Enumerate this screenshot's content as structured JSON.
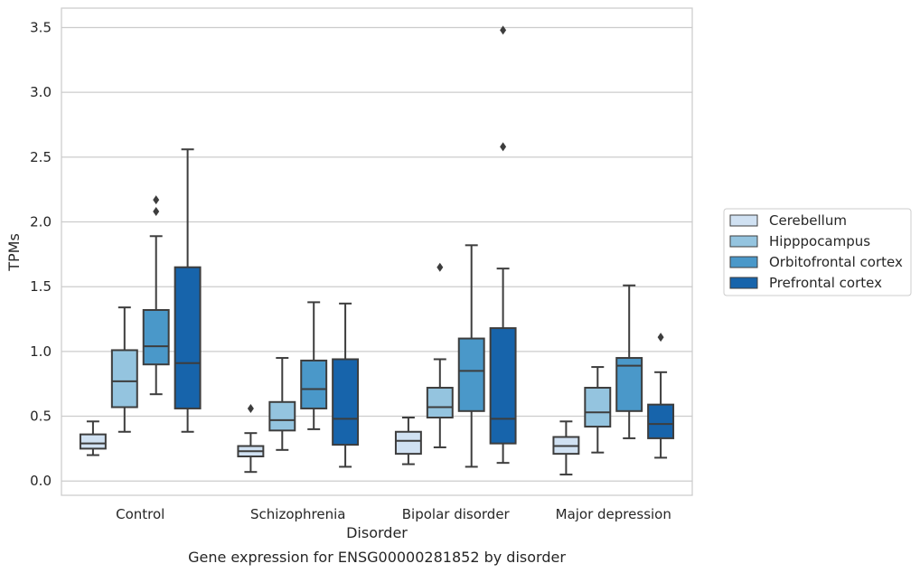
{
  "chart_data": {
    "type": "box",
    "caption": "Gene expression for ENSG00000281852 by disorder",
    "xlabel": "Disorder",
    "ylabel": "TPMs",
    "ylim": [
      -0.11,
      3.65
    ],
    "yticks": [
      0.0,
      0.5,
      1.0,
      1.5,
      2.0,
      2.5,
      3.0,
      3.5
    ],
    "ytick_labels": [
      "0.0",
      "0.5",
      "1.0",
      "1.5",
      "2.0",
      "2.5",
      "3.0",
      "3.5"
    ],
    "grid": "horizontal",
    "legend_position": "right",
    "categories": [
      "Control",
      "Schizophrenia",
      "Bipolar disorder",
      "Major depression"
    ],
    "series": [
      {
        "name": "Cerebellum",
        "color": "#d0e1f2",
        "boxes": [
          {
            "whislo": 0.2,
            "q1": 0.25,
            "med": 0.29,
            "q3": 0.36,
            "whishi": 0.46,
            "fliers": []
          },
          {
            "whislo": 0.07,
            "q1": 0.19,
            "med": 0.23,
            "q3": 0.27,
            "whishi": 0.37,
            "fliers": [
              0.56
            ]
          },
          {
            "whislo": 0.13,
            "q1": 0.21,
            "med": 0.31,
            "q3": 0.38,
            "whishi": 0.49,
            "fliers": []
          },
          {
            "whislo": 0.05,
            "q1": 0.21,
            "med": 0.27,
            "q3": 0.34,
            "whishi": 0.46,
            "fliers": []
          }
        ]
      },
      {
        "name": "Hipppocampus",
        "color": "#94c4df",
        "boxes": [
          {
            "whislo": 0.38,
            "q1": 0.57,
            "med": 0.77,
            "q3": 1.01,
            "whishi": 1.34,
            "fliers": []
          },
          {
            "whislo": 0.24,
            "q1": 0.39,
            "med": 0.47,
            "q3": 0.61,
            "whishi": 0.95,
            "fliers": []
          },
          {
            "whislo": 0.26,
            "q1": 0.49,
            "med": 0.57,
            "q3": 0.72,
            "whishi": 0.94,
            "fliers": [
              1.65
            ]
          },
          {
            "whislo": 0.22,
            "q1": 0.42,
            "med": 0.53,
            "q3": 0.72,
            "whishi": 0.88,
            "fliers": []
          }
        ]
      },
      {
        "name": "Orbitofrontal cortex",
        "color": "#4a98c9",
        "boxes": [
          {
            "whislo": 0.67,
            "q1": 0.9,
            "med": 1.04,
            "q3": 1.32,
            "whishi": 1.89,
            "fliers": [
              2.08,
              2.17
            ]
          },
          {
            "whislo": 0.4,
            "q1": 0.56,
            "med": 0.71,
            "q3": 0.93,
            "whishi": 1.38,
            "fliers": []
          },
          {
            "whislo": 0.11,
            "q1": 0.54,
            "med": 0.85,
            "q3": 1.1,
            "whishi": 1.82,
            "fliers": []
          },
          {
            "whislo": 0.33,
            "q1": 0.54,
            "med": 0.89,
            "q3": 0.95,
            "whishi": 1.51,
            "fliers": []
          }
        ]
      },
      {
        "name": "Prefrontal cortex",
        "color": "#1764ab",
        "boxes": [
          {
            "whislo": 0.38,
            "q1": 0.56,
            "med": 0.91,
            "q3": 1.65,
            "whishi": 2.56,
            "fliers": []
          },
          {
            "whislo": 0.11,
            "q1": 0.28,
            "med": 0.48,
            "q3": 0.94,
            "whishi": 1.37,
            "fliers": []
          },
          {
            "whislo": 0.14,
            "q1": 0.29,
            "med": 0.48,
            "q3": 1.18,
            "whishi": 1.64,
            "fliers": [
              2.58,
              3.48
            ]
          },
          {
            "whislo": 0.18,
            "q1": 0.33,
            "med": 0.44,
            "q3": 0.59,
            "whishi": 0.84,
            "fliers": [
              1.11
            ]
          }
        ]
      }
    ]
  }
}
